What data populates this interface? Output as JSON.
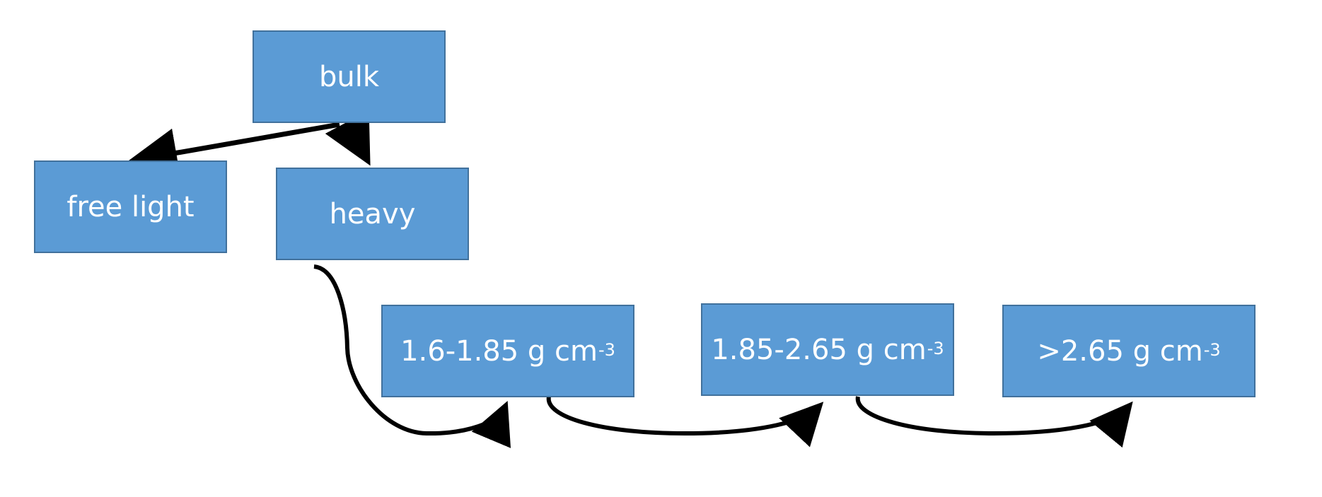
{
  "diagram": {
    "nodes": {
      "bulk": {
        "label": "bulk"
      },
      "free_light": {
        "label": "free light"
      },
      "heavy": {
        "label": "heavy"
      },
      "fraction_1": {
        "label": "1.6-1.85 g cm",
        "unit_exponent": "-3"
      },
      "fraction_2": {
        "label": "1.85-2.65 g cm",
        "unit_exponent": "-3"
      },
      "fraction_3": {
        "label": ">2.65 g cm",
        "unit_exponent": "-3"
      }
    },
    "edges": [
      {
        "from": "bulk",
        "to": "free_light"
      },
      {
        "from": "bulk",
        "to": "heavy"
      },
      {
        "from": "heavy",
        "to": "fraction_1"
      },
      {
        "from": "fraction_1",
        "to": "fraction_2"
      },
      {
        "from": "fraction_2",
        "to": "fraction_3"
      }
    ],
    "colors": {
      "node_fill": "#5b9bd5",
      "node_border": "#41719c",
      "node_text": "#ffffff",
      "arrow": "#000000"
    }
  }
}
